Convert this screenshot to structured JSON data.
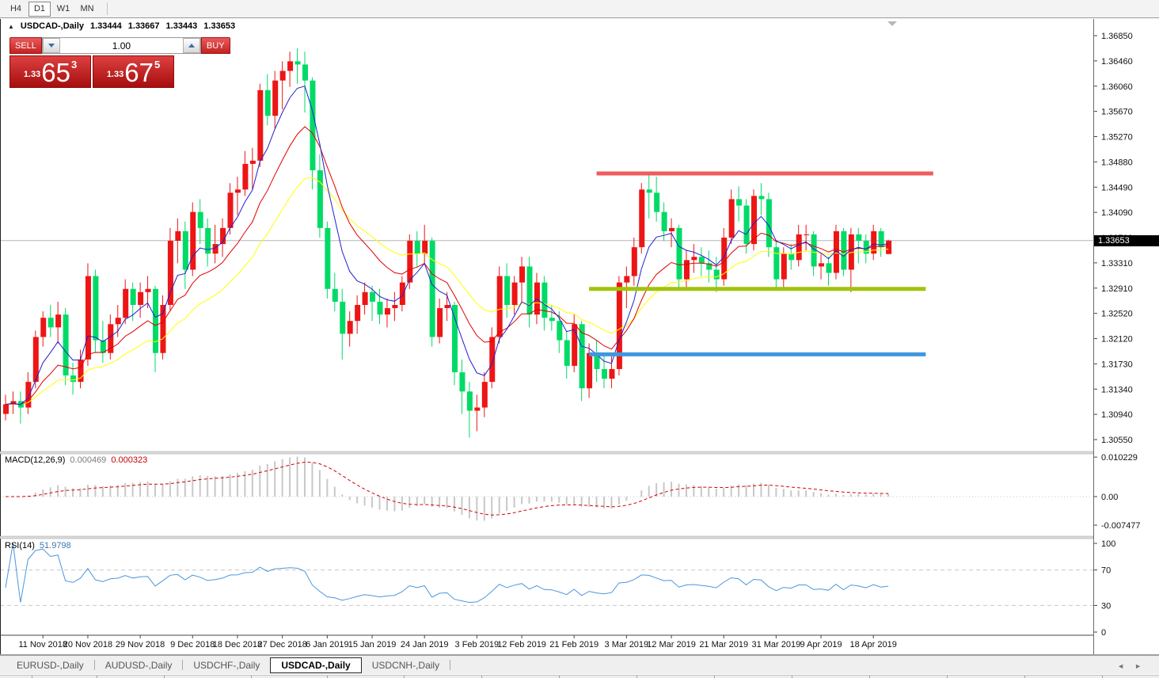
{
  "window": {
    "toolbar_timeframes": [
      {
        "label": "H4",
        "active": false
      },
      {
        "label": "D1",
        "active": true
      },
      {
        "label": "W1",
        "active": false
      },
      {
        "label": "MN",
        "active": false
      }
    ],
    "tabs": [
      {
        "label": "EURUSD-,Daily",
        "active": false
      },
      {
        "label": "AUDUSD-,Daily",
        "active": false
      },
      {
        "label": "USDCHF-,Daily",
        "active": false
      },
      {
        "label": "USDCAD-,Daily",
        "active": true
      },
      {
        "label": "USDCNH-,Daily",
        "active": false
      }
    ],
    "tab_scroll_left": "◄",
    "tab_scroll_right": "►"
  },
  "header": {
    "collapse_arrow": "▲",
    "title": "USDCAD-,Daily",
    "open": "1.33444",
    "high": "1.33667",
    "low": "1.33443",
    "close": "1.33653"
  },
  "trade_widget": {
    "sell_label": "SELL",
    "buy_label": "BUY",
    "volume": "1.00",
    "sell_price_prefix": "1.33",
    "sell_price_big": "65",
    "sell_price_sup": "3",
    "buy_price_prefix": "1.33",
    "buy_price_big": "67",
    "buy_price_sup": "5"
  },
  "icons": {
    "volume_down": "triangle-down-icon",
    "volume_up": "triangle-up-icon",
    "collapse": "triangle-up-icon",
    "chart_shift": "triangle-down-icon"
  },
  "y_axis": {
    "ticks": [
      "1.36850",
      "1.36460",
      "1.36060",
      "1.35670",
      "1.35270",
      "1.34880",
      "1.34490",
      "1.34090",
      "1.33700",
      "1.33310",
      "1.32910",
      "1.32520",
      "1.32120",
      "1.31730",
      "1.31340",
      "1.30940",
      "1.30550"
    ],
    "current_price_label": "1.33653"
  },
  "macd_panel": {
    "label": "MACD(12,26,9)",
    "value_main": "0.000469",
    "value_signal": "0.000323",
    "scale_ticks": [
      "0.010229",
      "0.00",
      "-0.007477"
    ]
  },
  "rsi_panel": {
    "label": "RSI(14)",
    "value": "51.9798",
    "scale_ticks": [
      "100",
      "70",
      "30",
      "0"
    ]
  },
  "x_axis": {
    "ticks": [
      {
        "index": 5,
        "label": "11 Nov 2018"
      },
      {
        "index": 11,
        "label": "20 Nov 2018"
      },
      {
        "index": 18,
        "label": "29 Nov 2018"
      },
      {
        "index": 25,
        "label": "9 Dec 2018"
      },
      {
        "index": 31,
        "label": "18 Dec 2018"
      },
      {
        "index": 37,
        "label": "27 Dec 2018"
      },
      {
        "index": 43,
        "label": "6 Jan 2019"
      },
      {
        "index": 49,
        "label": "15 Jan 2019"
      },
      {
        "index": 56,
        "label": "24 Jan 2019"
      },
      {
        "index": 63,
        "label": "3 Feb 2019"
      },
      {
        "index": 69,
        "label": "12 Feb 2019"
      },
      {
        "index": 76,
        "label": "21 Feb 2019"
      },
      {
        "index": 83,
        "label": "3 Mar 2019"
      },
      {
        "index": 89,
        "label": "12 Mar 2019"
      },
      {
        "index": 96,
        "label": "21 Mar 2019"
      },
      {
        "index": 103,
        "label": "31 Mar 2019"
      },
      {
        "index": 109,
        "label": "9 Apr 2019"
      },
      {
        "index": 116,
        "label": "18 Apr 2019"
      }
    ]
  },
  "colors": {
    "up": "#ed1515",
    "down": "#00db67",
    "ma_fast": "#2020d0",
    "ma_mid": "#e00000",
    "ma_slow": "#ffff00",
    "macd_hist": "#c8c8c8",
    "macd_signal": "#d40000",
    "rsi": "#4a97dd",
    "hline_red": "#f15b5b",
    "hline_olive": "#a0c40b",
    "hline_blue": "#3e97de",
    "current_line": "#b6b6b6",
    "badge_bg": "#000000",
    "frame": "#6a6a6a",
    "level_dash": "#c8c8c8"
  },
  "chart_data": {
    "type": "candlestick",
    "symbol": "USDCAD-",
    "timeframe": "Daily",
    "y_range": {
      "top": 1.3685,
      "bottom": 1.3055
    },
    "dates": [
      "2018-11-05",
      "2018-11-06",
      "2018-11-07",
      "2018-11-08",
      "2018-11-09",
      "2018-11-12",
      "2018-11-13",
      "2018-11-14",
      "2018-11-15",
      "2018-11-16",
      "2018-11-19",
      "2018-11-20",
      "2018-11-21",
      "2018-11-22",
      "2018-11-23",
      "2018-11-26",
      "2018-11-27",
      "2018-11-28",
      "2018-11-29",
      "2018-11-30",
      "2018-12-03",
      "2018-12-04",
      "2018-12-05",
      "2018-12-06",
      "2018-12-07",
      "2018-12-10",
      "2018-12-11",
      "2018-12-12",
      "2018-12-13",
      "2018-12-14",
      "2018-12-17",
      "2018-12-18",
      "2018-12-19",
      "2018-12-20",
      "2018-12-21",
      "2018-12-24",
      "2018-12-26",
      "2018-12-27",
      "2018-12-28",
      "2018-12-31",
      "2019-01-02",
      "2019-01-03",
      "2019-01-04",
      "2019-01-07",
      "2019-01-08",
      "2019-01-09",
      "2019-01-10",
      "2019-01-11",
      "2019-01-14",
      "2019-01-15",
      "2019-01-16",
      "2019-01-17",
      "2019-01-18",
      "2019-01-21",
      "2019-01-22",
      "2019-01-23",
      "2019-01-24",
      "2019-01-25",
      "2019-01-28",
      "2019-01-29",
      "2019-01-30",
      "2019-01-31",
      "2019-02-01",
      "2019-02-04",
      "2019-02-05",
      "2019-02-06",
      "2019-02-07",
      "2019-02-08",
      "2019-02-11",
      "2019-02-12",
      "2019-02-13",
      "2019-02-14",
      "2019-02-15",
      "2019-02-18",
      "2019-02-19",
      "2019-02-20",
      "2019-02-21",
      "2019-02-22",
      "2019-02-25",
      "2019-02-26",
      "2019-02-27",
      "2019-02-28",
      "2019-03-01",
      "2019-03-04",
      "2019-03-05",
      "2019-03-06",
      "2019-03-07",
      "2019-03-08",
      "2019-03-11",
      "2019-03-12",
      "2019-03-13",
      "2019-03-14",
      "2019-03-15",
      "2019-03-18",
      "2019-03-19",
      "2019-03-20",
      "2019-03-21",
      "2019-03-22",
      "2019-03-25",
      "2019-03-26",
      "2019-03-27",
      "2019-03-28",
      "2019-03-29",
      "2019-04-01",
      "2019-04-02",
      "2019-04-03",
      "2019-04-04",
      "2019-04-05",
      "2019-04-08",
      "2019-04-09",
      "2019-04-10",
      "2019-04-11",
      "2019-04-12",
      "2019-04-15",
      "2019-04-16",
      "2019-04-17",
      "2019-04-18",
      "2019-04-22",
      "2019-04-23"
    ],
    "ohlc": [
      [
        1.3095,
        1.3125,
        1.3085,
        1.311
      ],
      [
        1.311,
        1.313,
        1.3095,
        1.3115
      ],
      [
        1.3115,
        1.313,
        1.308,
        1.3105
      ],
      [
        1.3105,
        1.316,
        1.3095,
        1.3145
      ],
      [
        1.3145,
        1.3225,
        1.3135,
        1.3215
      ],
      [
        1.3215,
        1.3255,
        1.32,
        1.3245
      ],
      [
        1.3245,
        1.3265,
        1.3215,
        1.323
      ],
      [
        1.323,
        1.327,
        1.3205,
        1.325
      ],
      [
        1.325,
        1.326,
        1.314,
        1.3155
      ],
      [
        1.3155,
        1.3175,
        1.3125,
        1.3145
      ],
      [
        1.3145,
        1.3195,
        1.3135,
        1.318
      ],
      [
        1.318,
        1.333,
        1.317,
        1.331
      ],
      [
        1.331,
        1.332,
        1.319,
        1.321
      ],
      [
        1.321,
        1.324,
        1.3175,
        1.319
      ],
      [
        1.319,
        1.325,
        1.318,
        1.3235
      ],
      [
        1.3235,
        1.3265,
        1.3215,
        1.3245
      ],
      [
        1.3245,
        1.3305,
        1.3235,
        1.329
      ],
      [
        1.329,
        1.33,
        1.324,
        1.3265
      ],
      [
        1.3265,
        1.33,
        1.3245,
        1.3285
      ],
      [
        1.3285,
        1.331,
        1.326,
        1.329
      ],
      [
        1.329,
        1.3295,
        1.316,
        1.319
      ],
      [
        1.319,
        1.328,
        1.318,
        1.3265
      ],
      [
        1.3265,
        1.3385,
        1.3255,
        1.3365
      ],
      [
        1.3365,
        1.34,
        1.333,
        1.338
      ],
      [
        1.338,
        1.3395,
        1.329,
        1.332
      ],
      [
        1.332,
        1.3425,
        1.331,
        1.341
      ],
      [
        1.341,
        1.343,
        1.336,
        1.3385
      ],
      [
        1.3385,
        1.34,
        1.3325,
        1.3345
      ],
      [
        1.3345,
        1.339,
        1.333,
        1.336
      ],
      [
        1.336,
        1.34,
        1.334,
        1.3385
      ],
      [
        1.3385,
        1.3455,
        1.3375,
        1.344
      ],
      [
        1.344,
        1.3465,
        1.3405,
        1.3445
      ],
      [
        1.3445,
        1.3505,
        1.3435,
        1.3485
      ],
      [
        1.3485,
        1.351,
        1.3445,
        1.349
      ],
      [
        1.349,
        1.361,
        1.348,
        1.36
      ],
      [
        1.36,
        1.3625,
        1.3545,
        1.356
      ],
      [
        1.356,
        1.363,
        1.354,
        1.3615
      ],
      [
        1.3615,
        1.3645,
        1.357,
        1.363
      ],
      [
        1.363,
        1.366,
        1.3605,
        1.3645
      ],
      [
        1.3645,
        1.3665,
        1.361,
        1.364
      ],
      [
        1.364,
        1.366,
        1.3565,
        1.3615
      ],
      [
        1.3615,
        1.362,
        1.3445,
        1.3475
      ],
      [
        1.3475,
        1.35,
        1.337,
        1.3385
      ],
      [
        1.3385,
        1.3395,
        1.3275,
        1.329
      ],
      [
        1.329,
        1.3315,
        1.3255,
        1.327
      ],
      [
        1.327,
        1.329,
        1.318,
        1.322
      ],
      [
        1.322,
        1.3255,
        1.32,
        1.324
      ],
      [
        1.324,
        1.328,
        1.322,
        1.3265
      ],
      [
        1.3265,
        1.33,
        1.325,
        1.3285
      ],
      [
        1.3285,
        1.3295,
        1.324,
        1.327
      ],
      [
        1.327,
        1.329,
        1.3235,
        1.325
      ],
      [
        1.325,
        1.3275,
        1.323,
        1.326
      ],
      [
        1.326,
        1.3285,
        1.324,
        1.3265
      ],
      [
        1.3265,
        1.331,
        1.3255,
        1.33
      ],
      [
        1.33,
        1.3375,
        1.329,
        1.3365
      ],
      [
        1.3365,
        1.338,
        1.3325,
        1.3345
      ],
      [
        1.3345,
        1.339,
        1.333,
        1.3365
      ],
      [
        1.3365,
        1.337,
        1.32,
        1.3215
      ],
      [
        1.3215,
        1.3275,
        1.3205,
        1.326
      ],
      [
        1.326,
        1.3285,
        1.324,
        1.3265
      ],
      [
        1.3265,
        1.327,
        1.314,
        1.316
      ],
      [
        1.316,
        1.318,
        1.3095,
        1.313
      ],
      [
        1.313,
        1.3145,
        1.3058,
        1.31
      ],
      [
        1.31,
        1.3125,
        1.3068,
        1.3105
      ],
      [
        1.3105,
        1.316,
        1.309,
        1.3145
      ],
      [
        1.3145,
        1.323,
        1.3135,
        1.3215
      ],
      [
        1.3215,
        1.3325,
        1.3205,
        1.331
      ],
      [
        1.331,
        1.333,
        1.3245,
        1.3265
      ],
      [
        1.3265,
        1.331,
        1.325,
        1.33
      ],
      [
        1.33,
        1.334,
        1.327,
        1.3325
      ],
      [
        1.3325,
        1.334,
        1.323,
        1.325
      ],
      [
        1.325,
        1.3315,
        1.3235,
        1.33
      ],
      [
        1.33,
        1.331,
        1.3225,
        1.3245
      ],
      [
        1.3245,
        1.3265,
        1.3225,
        1.324
      ],
      [
        1.324,
        1.3255,
        1.319,
        1.321
      ],
      [
        1.321,
        1.3225,
        1.315,
        1.317
      ],
      [
        1.317,
        1.325,
        1.316,
        1.3235
      ],
      [
        1.3235,
        1.324,
        1.3115,
        1.3135
      ],
      [
        1.3135,
        1.3205,
        1.312,
        1.319
      ],
      [
        1.319,
        1.321,
        1.3145,
        1.3165
      ],
      [
        1.3165,
        1.319,
        1.3135,
        1.315
      ],
      [
        1.315,
        1.3185,
        1.3135,
        1.3165
      ],
      [
        1.3165,
        1.331,
        1.3155,
        1.33
      ],
      [
        1.33,
        1.3325,
        1.326,
        1.331
      ],
      [
        1.331,
        1.337,
        1.3295,
        1.3355
      ],
      [
        1.3355,
        1.3455,
        1.3345,
        1.3445
      ],
      [
        1.3445,
        1.347,
        1.34,
        1.344
      ],
      [
        1.344,
        1.3465,
        1.3395,
        1.341
      ],
      [
        1.341,
        1.3425,
        1.3365,
        1.338
      ],
      [
        1.338,
        1.34,
        1.3355,
        1.3385
      ],
      [
        1.3385,
        1.339,
        1.329,
        1.3305
      ],
      [
        1.3305,
        1.335,
        1.329,
        1.3335
      ],
      [
        1.3335,
        1.336,
        1.3315,
        1.334
      ],
      [
        1.334,
        1.3355,
        1.331,
        1.333
      ],
      [
        1.333,
        1.335,
        1.33,
        1.332
      ],
      [
        1.332,
        1.334,
        1.3285,
        1.3305
      ],
      [
        1.3305,
        1.3385,
        1.3295,
        1.337
      ],
      [
        1.337,
        1.3445,
        1.336,
        1.343
      ],
      [
        1.343,
        1.345,
        1.3395,
        1.342
      ],
      [
        1.342,
        1.343,
        1.3345,
        1.336
      ],
      [
        1.336,
        1.3445,
        1.335,
        1.3435
      ],
      [
        1.3435,
        1.3455,
        1.3405,
        1.343
      ],
      [
        1.343,
        1.344,
        1.334,
        1.3355
      ],
      [
        1.3355,
        1.3365,
        1.329,
        1.3305
      ],
      [
        1.3305,
        1.3355,
        1.329,
        1.3345
      ],
      [
        1.3345,
        1.336,
        1.332,
        1.3335
      ],
      [
        1.3335,
        1.339,
        1.3325,
        1.3375
      ],
      [
        1.3375,
        1.339,
        1.335,
        1.3375
      ],
      [
        1.3375,
        1.338,
        1.331,
        1.3325
      ],
      [
        1.3325,
        1.3345,
        1.3305,
        1.333
      ],
      [
        1.333,
        1.334,
        1.3295,
        1.3315
      ],
      [
        1.3315,
        1.339,
        1.3305,
        1.338
      ],
      [
        1.338,
        1.3385,
        1.331,
        1.332
      ],
      [
        1.332,
        1.3385,
        1.3285,
        1.3375
      ],
      [
        1.3375,
        1.3385,
        1.333,
        1.3365
      ],
      [
        1.3365,
        1.3375,
        1.333,
        1.3345
      ],
      [
        1.3345,
        1.339,
        1.3335,
        1.338
      ],
      [
        1.338,
        1.3385,
        1.334,
        1.3355
      ],
      [
        1.33444,
        1.33667,
        1.33443,
        1.33653
      ]
    ],
    "overlays": {
      "moving_averages": [
        {
          "period": 6,
          "type": "ema",
          "color_key": "ma_fast"
        },
        {
          "period": 13,
          "type": "ema",
          "color_key": "ma_mid"
        },
        {
          "period": 24,
          "type": "ema",
          "color_key": "ma_slow"
        }
      ],
      "horizontal_lines": [
        {
          "price": 1.347,
          "color_key": "hline_red",
          "from_index": 79,
          "to_index": 124
        },
        {
          "price": 1.329,
          "color_key": "hline_olive",
          "from_index": 78,
          "to_index": 123
        },
        {
          "price": 1.3188,
          "color_key": "hline_blue",
          "from_index": 78,
          "to_index": 123
        }
      ],
      "current_price": 1.33653
    },
    "indicators": {
      "macd": {
        "fast": 12,
        "slow": 26,
        "signal": 9,
        "current_main": 0.000469,
        "current_signal": 0.000323,
        "scale": {
          "max": 0.010229,
          "zero": 0.0,
          "min": -0.007477
        }
      },
      "rsi": {
        "period": 14,
        "current": 51.9798,
        "levels": [
          70,
          30
        ],
        "scale": [
          100,
          70,
          30,
          0
        ]
      }
    }
  }
}
